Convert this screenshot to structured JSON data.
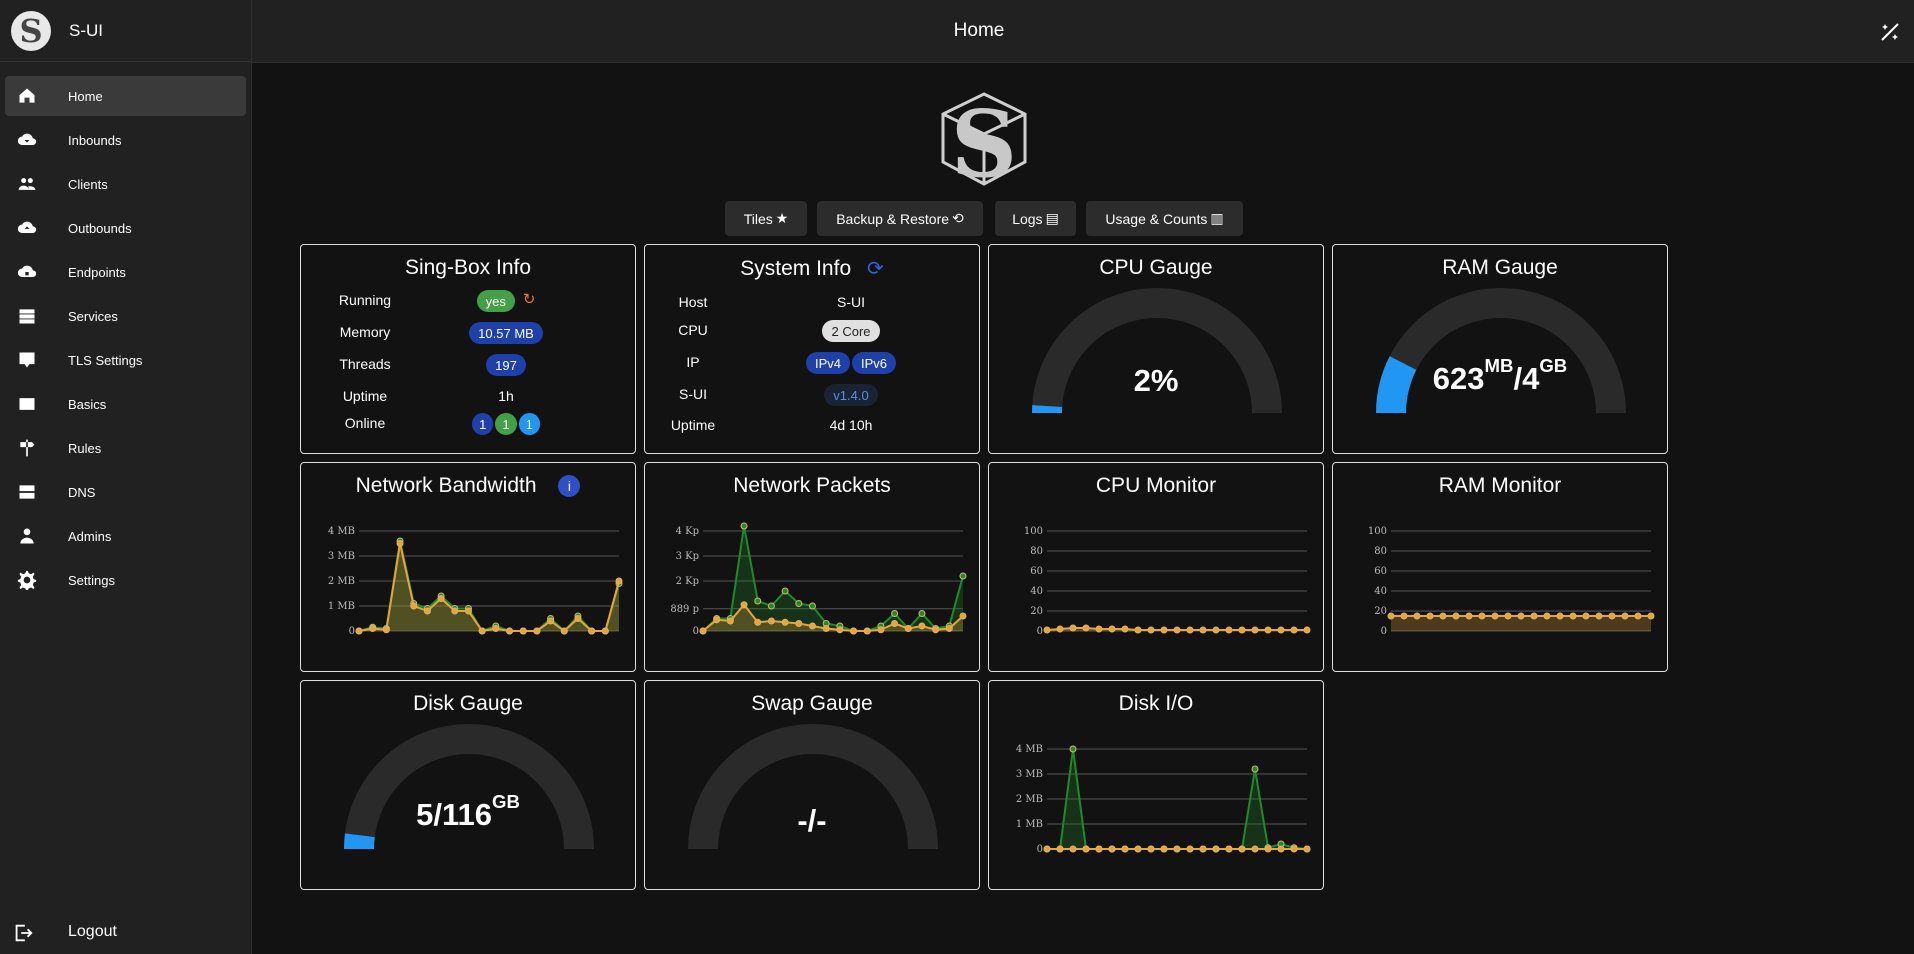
{
  "app": {
    "title": "S-UI",
    "page_title": "Home",
    "logo_letter": "S"
  },
  "sidebar": {
    "items": [
      {
        "label": "Home",
        "icon": "home-icon",
        "active": true
      },
      {
        "label": "Inbounds",
        "icon": "cloud-download-icon"
      },
      {
        "label": "Clients",
        "icon": "users-icon"
      },
      {
        "label": "Outbounds",
        "icon": "cloud-upload-icon"
      },
      {
        "label": "Endpoints",
        "icon": "cloud-lock-icon"
      },
      {
        "label": "Services",
        "icon": "server-icon"
      },
      {
        "label": "TLS Settings",
        "icon": "certificate-icon"
      },
      {
        "label": "Basics",
        "icon": "card-icon"
      },
      {
        "label": "Rules",
        "icon": "signpost-icon"
      },
      {
        "label": "DNS",
        "icon": "dns-icon"
      },
      {
        "label": "Admins",
        "icon": "admin-icon"
      },
      {
        "label": "Settings",
        "icon": "gear-icon"
      }
    ],
    "logout": "Logout"
  },
  "toolbar": {
    "tiles": "Tiles",
    "backup": "Backup & Restore",
    "logs": "Logs",
    "usage": "Usage & Counts"
  },
  "singbox": {
    "title": "Sing-Box Info",
    "rows": [
      {
        "k": "Running",
        "v": "yes"
      },
      {
        "k": "Memory",
        "v": "10.57 MB"
      },
      {
        "k": "Threads",
        "v": "197"
      },
      {
        "k": "Uptime",
        "v": "1h"
      },
      {
        "k": "Online",
        "v": [
          "1",
          "1",
          "1"
        ]
      }
    ]
  },
  "sysinfo": {
    "title": "System Info",
    "rows": [
      {
        "k": "Host",
        "v": "S-UI"
      },
      {
        "k": "CPU",
        "v": "2 Core"
      },
      {
        "k": "IP",
        "v": [
          "IPv4",
          "IPv6"
        ]
      },
      {
        "k": "S-UI",
        "v": "v1.4.0"
      },
      {
        "k": "Uptime",
        "v": "4d 10h"
      }
    ]
  },
  "gauges": {
    "cpu": {
      "title": "CPU Gauge",
      "value": "2%",
      "fraction": 0.02
    },
    "ram": {
      "title": "RAM Gauge",
      "used": "623",
      "used_unit": "MB",
      "total": "4",
      "total_unit": "GB",
      "fraction": 0.15
    },
    "disk": {
      "title": "Disk Gauge",
      "used": "5",
      "total": "116",
      "unit": "GB",
      "fraction": 0.04
    },
    "swap": {
      "title": "Swap Gauge",
      "value": "-/-",
      "fraction": 0
    }
  },
  "colors": {
    "orange": "#e8a33a",
    "green": "#1f8a2a",
    "blue": "#2196f3",
    "accent_blue": "#1e40a8",
    "grid": "#555555",
    "track": "#2a2a2a"
  },
  "chart_data": [
    {
      "type": "area",
      "title": "Network Bandwidth",
      "yticks": [
        "0",
        "1 MB",
        "2 MB",
        "3 MB",
        "4 MB"
      ],
      "ylim": [
        0,
        4
      ],
      "series": [
        {
          "values": [
            0,
            0.15,
            0.1,
            3.6,
            1.1,
            0.9,
            1.4,
            0.9,
            0.9,
            0,
            0.2,
            0,
            0,
            0,
            0.5,
            0,
            0.6,
            0,
            0,
            1.9
          ]
        },
        {
          "values": [
            0,
            0.1,
            0.05,
            3.5,
            1.0,
            0.8,
            1.3,
            0.8,
            0.8,
            0,
            0.1,
            0,
            0,
            0,
            0.4,
            0,
            0.5,
            0,
            0,
            2.0
          ]
        }
      ]
    },
    {
      "type": "area",
      "title": "Network Packets",
      "yticks": [
        "0",
        "889 p",
        "2 Kp",
        "3 Kp",
        "4 Kp"
      ],
      "yvals": [
        0,
        0.889,
        2,
        3,
        4
      ],
      "ylim": [
        0,
        4
      ],
      "series": [
        {
          "values": [
            0,
            0.5,
            0.5,
            4.3,
            1.2,
            1.0,
            1.6,
            1.1,
            1.0,
            0.3,
            0.2,
            0,
            0,
            0.2,
            0.7,
            0.1,
            0.7,
            0.1,
            0.2,
            2.2
          ]
        },
        {
          "values": [
            0,
            0.45,
            0.4,
            1.05,
            0.35,
            0.4,
            0.35,
            0.3,
            0.2,
            0.1,
            0.05,
            0,
            0,
            0.05,
            0.3,
            0.1,
            0.2,
            0.05,
            0.1,
            0.6
          ]
        }
      ]
    },
    {
      "type": "area",
      "title": "CPU Monitor",
      "yticks": [
        "0",
        "20",
        "40",
        "60",
        "80",
        "100"
      ],
      "ylim": [
        0,
        100
      ],
      "series": [
        {
          "values": [
            1,
            2,
            3,
            3,
            2,
            2,
            2,
            1,
            1,
            1,
            1,
            1,
            1,
            1,
            1,
            1,
            1,
            1,
            1,
            1,
            1
          ]
        }
      ]
    },
    {
      "type": "area",
      "title": "RAM Monitor",
      "yticks": [
        "0",
        "20",
        "40",
        "60",
        "80",
        "100"
      ],
      "ylim": [
        0,
        100
      ],
      "series": [
        {
          "values": [
            15,
            15,
            15,
            15,
            15,
            15,
            15,
            15,
            15,
            15,
            15,
            15,
            15,
            15,
            15,
            15,
            15,
            15,
            15,
            15,
            15
          ]
        }
      ]
    },
    {
      "type": "area",
      "title": "Disk I/O",
      "yticks": [
        "0",
        "1 MB",
        "2 MB",
        "3 MB",
        "4 MB"
      ],
      "ylim": [
        0,
        4
      ],
      "series": [
        {
          "values": [
            0,
            0,
            4,
            0,
            0,
            0,
            0,
            0,
            0,
            0,
            0,
            0,
            0,
            0,
            0,
            0,
            3.2,
            0.05,
            0.2,
            0.05,
            0
          ]
        },
        {
          "values": [
            0,
            0,
            0,
            0,
            0,
            0,
            0,
            0,
            0,
            0,
            0,
            0,
            0,
            0,
            0,
            0,
            0,
            0,
            0,
            0,
            0
          ]
        }
      ]
    }
  ]
}
